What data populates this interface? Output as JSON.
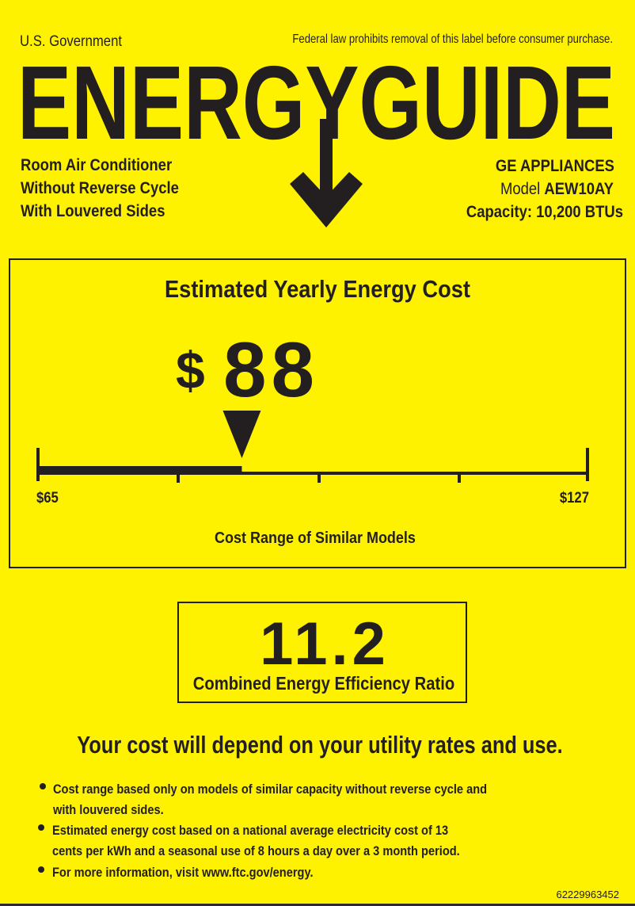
{
  "header": {
    "government": "U.S. Government",
    "notice": "Federal law prohibits removal of this label before consumer purchase.",
    "title": "ENERGYGUIDE"
  },
  "product": {
    "lines": [
      "Room Air Conditioner",
      "Without Reverse Cycle",
      "With Louvered Sides"
    ],
    "brand": "GE APPLIANCES",
    "model_label": "Model",
    "model": "AEW10AY",
    "capacity": "Capacity: 10,200 BTUs"
  },
  "cost": {
    "heading": "Estimated Yearly Energy Cost",
    "currency": "$",
    "value": "88",
    "value_number": 88,
    "range_min_label": "$65",
    "range_max_label": "$127",
    "range_min": 65,
    "range_max": 127,
    "range_caption": "Cost Range of Similar Models"
  },
  "efficiency": {
    "value": "11.2",
    "label": "Combined Energy Efficiency Ratio"
  },
  "disclaimer": "Your cost will depend on your utility rates and use.",
  "notes": [
    {
      "line1": "Cost range based only on models of similar capacity without reverse cycle and",
      "line2": "with louvered sides."
    },
    {
      "line1": "Estimated energy cost based on a national average electricity cost of 13",
      "line2": "cents per kWh and a seasonal use of 8 hours a day over a 3 month period."
    },
    {
      "line1": "For more information, visit www.ftc.gov/energy.",
      "line2": ""
    }
  ],
  "code": "62229963452",
  "colors": {
    "background": "#fff200",
    "ink": "#231f20"
  }
}
